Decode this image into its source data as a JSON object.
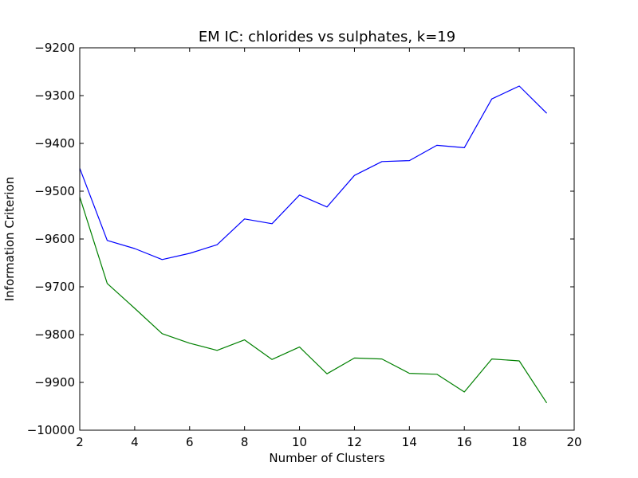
{
  "chart_data": {
    "type": "line",
    "title": "EM IC: chlorides vs sulphates, k=19",
    "xlabel": "Number of Clusters",
    "ylabel": "Information Criterion",
    "xlim": [
      2,
      20
    ],
    "ylim": [
      -10000,
      -9200
    ],
    "xticks": [
      2,
      4,
      6,
      8,
      10,
      12,
      14,
      16,
      18,
      20
    ],
    "yticks": [
      -10000,
      -9900,
      -9800,
      -9700,
      -9600,
      -9500,
      -9400,
      -9300,
      -9200
    ],
    "xtick_labels": [
      "2",
      "4",
      "6",
      "8",
      "10",
      "12",
      "14",
      "16",
      "18",
      "20"
    ],
    "ytick_labels": [
      "−10000",
      "−9900",
      "−9800",
      "−9700",
      "−9600",
      "−9500",
      "−9400",
      "−9300",
      "−9200"
    ],
    "grid": false,
    "x": [
      2,
      3,
      4,
      5,
      6,
      7,
      8,
      9,
      10,
      11,
      12,
      13,
      14,
      15,
      16,
      17,
      18,
      19
    ],
    "series": [
      {
        "color": "#0000ff",
        "values": [
          -9452,
          -9603,
          -9620,
          -9643,
          -9630,
          -9612,
          -9558,
          -9568,
          -9508,
          -9533,
          -9467,
          -9438,
          -9436,
          -9404,
          -9409,
          -9307,
          -9280,
          -9337
        ]
      },
      {
        "color": "#008000",
        "values": [
          -9512,
          -9693,
          -9745,
          -9798,
          -9818,
          -9833,
          -9811,
          -9852,
          -9826,
          -9882,
          -9849,
          -9851,
          -9881,
          -9883,
          -9920,
          -9851,
          -9855,
          -9943
        ]
      }
    ]
  }
}
